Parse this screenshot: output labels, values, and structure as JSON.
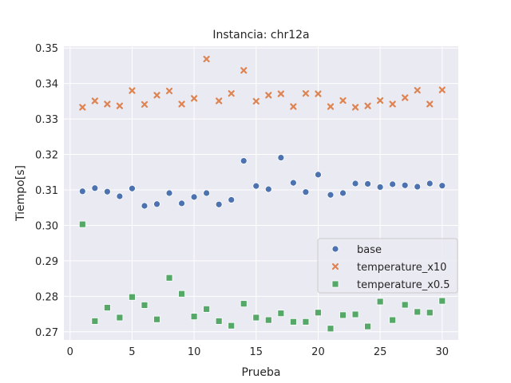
{
  "chart_data": {
    "type": "scatter",
    "title": "Instancia: chr12a",
    "xlabel": "Prueba",
    "ylabel": "Tiempo[s]",
    "xlim": [
      -0.5,
      31.3
    ],
    "ylim": [
      0.2677,
      0.3505
    ],
    "xticks": [
      0,
      5,
      10,
      15,
      20,
      25,
      30
    ],
    "yticks": [
      0.27,
      0.28,
      0.29,
      0.3,
      0.31,
      0.32,
      0.33,
      0.34,
      0.35
    ],
    "grid": true,
    "legend_position": "center-right",
    "x": [
      1,
      2,
      3,
      4,
      5,
      6,
      7,
      8,
      9,
      10,
      11,
      12,
      13,
      14,
      15,
      16,
      17,
      18,
      19,
      20,
      21,
      22,
      23,
      24,
      25,
      26,
      27,
      28,
      29,
      30
    ],
    "series": [
      {
        "name": "base",
        "marker": "circle",
        "color": "#4c72b0",
        "values": [
          0.3096,
          0.3105,
          0.3095,
          0.3082,
          0.3104,
          0.3055,
          0.306,
          0.3091,
          0.3062,
          0.308,
          0.3091,
          0.3059,
          0.3072,
          0.3182,
          0.3111,
          0.3102,
          0.3191,
          0.312,
          0.3094,
          0.3143,
          0.3086,
          0.3091,
          0.3118,
          0.3117,
          0.3108,
          0.3116,
          0.3113,
          0.3109,
          0.3118,
          0.3112
        ]
      },
      {
        "name": "temperature_x10",
        "marker": "x",
        "color": "#dd8452",
        "values": [
          0.3333,
          0.3351,
          0.3342,
          0.3337,
          0.338,
          0.3341,
          0.3367,
          0.3379,
          0.3342,
          0.3358,
          0.3469,
          0.3351,
          0.3372,
          0.3437,
          0.335,
          0.3367,
          0.3371,
          0.3335,
          0.3372,
          0.3371,
          0.3335,
          0.3352,
          0.3333,
          0.3337,
          0.3352,
          0.3342,
          0.336,
          0.3381,
          0.3342,
          0.3382
        ]
      },
      {
        "name": "temperature_x0.5",
        "marker": "square",
        "color": "#55a868",
        "values": [
          0.3003,
          0.273,
          0.2768,
          0.274,
          0.2798,
          0.2775,
          0.2735,
          0.2852,
          0.2807,
          0.2743,
          0.2764,
          0.273,
          0.2717,
          0.2779,
          0.274,
          0.2733,
          0.2752,
          0.2728,
          0.2728,
          0.2754,
          0.2709,
          0.2747,
          0.2749,
          0.2715,
          0.2785,
          0.2733,
          0.2776,
          0.2756,
          0.2754,
          0.2787
        ]
      }
    ]
  }
}
